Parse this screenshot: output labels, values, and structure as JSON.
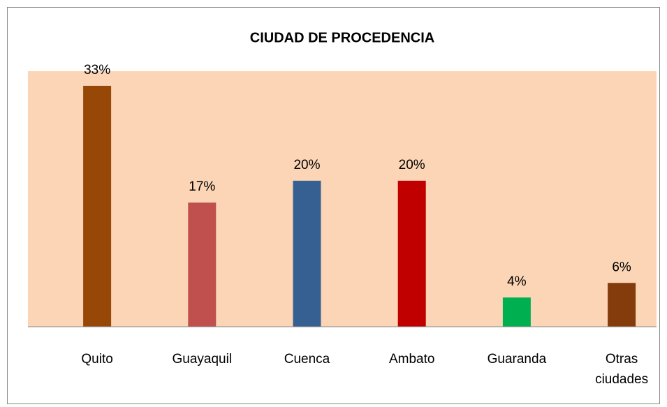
{
  "chart_data": {
    "type": "bar",
    "title": "CIUDAD DE PROCEDENCIA",
    "categories": [
      "Quito",
      "Guayaquil",
      "Cuenca",
      "Ambato",
      "Guaranda",
      "Otras ciudades"
    ],
    "values": [
      33,
      17,
      20,
      20,
      4,
      6
    ],
    "value_labels": [
      "33%",
      "17%",
      "20%",
      "20%",
      "4%",
      "6%"
    ],
    "colors": [
      "#974706",
      "#c0504d",
      "#376092",
      "#c00000",
      "#00b050",
      "#843c0c"
    ],
    "ylim": [
      0,
      35
    ]
  }
}
